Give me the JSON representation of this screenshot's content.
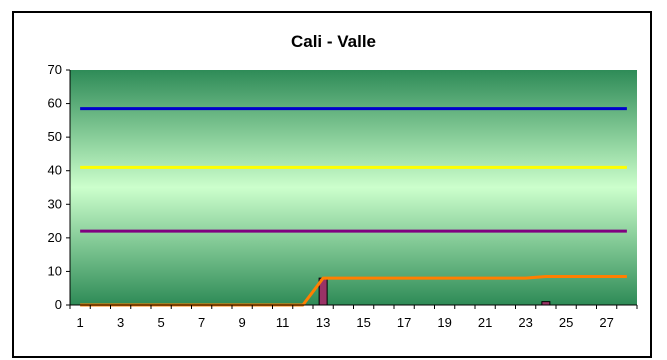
{
  "chart_data": {
    "type": "line",
    "title": "Cali - Valle",
    "xlabel": "",
    "ylabel": "",
    "x_ticks": [
      "1",
      "3",
      "5",
      "7",
      "9",
      "11",
      "13",
      "15",
      "17",
      "19",
      "21",
      "23",
      "25",
      "27"
    ],
    "y_ticks": [
      "0",
      "10",
      "20",
      "30",
      "40",
      "50",
      "60",
      "70"
    ],
    "ylim": [
      0,
      70
    ],
    "xlim": [
      0.5,
      28.5
    ],
    "grid": false,
    "legend": "none",
    "background": "vertical gradient, green edges to pale green center",
    "series": [
      {
        "type": "line",
        "color": "#0000cc",
        "x": [
          1,
          28
        ],
        "values": [
          58.5,
          58.5
        ]
      },
      {
        "type": "line",
        "color": "#ffff00",
        "x": [
          1,
          28
        ],
        "values": [
          41,
          41
        ]
      },
      {
        "type": "line",
        "color": "#800080",
        "x": [
          1,
          28
        ],
        "values": [
          22,
          22
        ]
      },
      {
        "type": "line",
        "color": "#ff7f00",
        "x": [
          1,
          2,
          3,
          4,
          5,
          6,
          7,
          8,
          9,
          10,
          11,
          12,
          13,
          14,
          15,
          16,
          17,
          18,
          19,
          20,
          21,
          22,
          23,
          24,
          25,
          26,
          27,
          28
        ],
        "values": [
          0,
          0,
          0,
          0,
          0,
          0,
          0,
          0,
          0,
          0,
          0,
          0,
          8,
          8,
          8,
          8,
          8,
          8,
          8,
          8,
          8,
          8,
          8,
          8.5,
          8.5,
          8.5,
          8.5,
          8.5
        ]
      },
      {
        "type": "bar",
        "color": "#993366",
        "x": [
          13,
          24
        ],
        "values": [
          8,
          1
        ]
      }
    ]
  }
}
